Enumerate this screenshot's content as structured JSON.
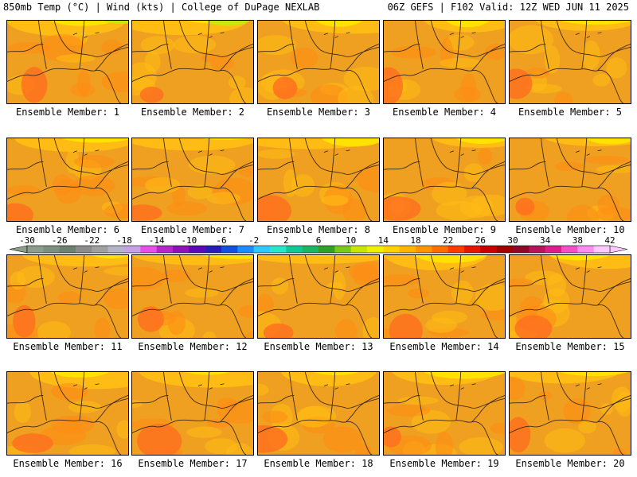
{
  "header": {
    "left": "850mb Temp (°C) | Wind (kts) | College of DuPage NEXLAB",
    "right": "06Z GEFS | F102 Valid: 12Z WED JUN 11 2025"
  },
  "members": [
    "Ensemble Member: 1",
    "Ensemble Member: 2",
    "Ensemble Member: 3",
    "Ensemble Member: 4",
    "Ensemble Member: 5",
    "Ensemble Member: 6",
    "Ensemble Member: 7",
    "Ensemble Member: 8",
    "Ensemble Member: 9",
    "Ensemble Member: 10",
    "Ensemble Member: 11",
    "Ensemble Member: 12",
    "Ensemble Member: 13",
    "Ensemble Member: 14",
    "Ensemble Member: 15",
    "Ensemble Member: 16",
    "Ensemble Member: 17",
    "Ensemble Member: 18",
    "Ensemble Member: 19",
    "Ensemble Member: 20"
  ],
  "colorbar": {
    "labels": [
      "-30",
      "-26",
      "-22",
      "-18",
      "-14",
      "-10",
      "-6",
      "-2",
      "2",
      "6",
      "10",
      "14",
      "18",
      "22",
      "26",
      "30",
      "34",
      "38",
      "42"
    ],
    "colors": [
      "#8c9d8c",
      "#7d8f80",
      "#6e8070",
      "#8c8c8c",
      "#a0a0a0",
      "#b4b4c8",
      "#c8a0e6",
      "#e650e6",
      "#b428c8",
      "#8c14b4",
      "#5a0ab4",
      "#281eb4",
      "#1450dc",
      "#1e8cff",
      "#32c8ff",
      "#28e6c8",
      "#14c896",
      "#1eb464",
      "#32a028",
      "#78c81e",
      "#c8e600",
      "#f0f000",
      "#ffd200",
      "#ffb400",
      "#ff9600",
      "#ff6e00",
      "#ff3c00",
      "#e61400",
      "#c80000",
      "#a00000",
      "#8c0a28",
      "#b4145a",
      "#dc1e8c",
      "#f050c8",
      "#ff8cf0",
      "#ffc8ff"
    ]
  },
  "palette": {
    "base": "#f0a020",
    "warm": "#ff8c14",
    "hot": "#ff6e1e",
    "cool": "#ffbe14",
    "coolest": "#ffe600",
    "lime": "#c8e614",
    "border": "#3c2814"
  }
}
